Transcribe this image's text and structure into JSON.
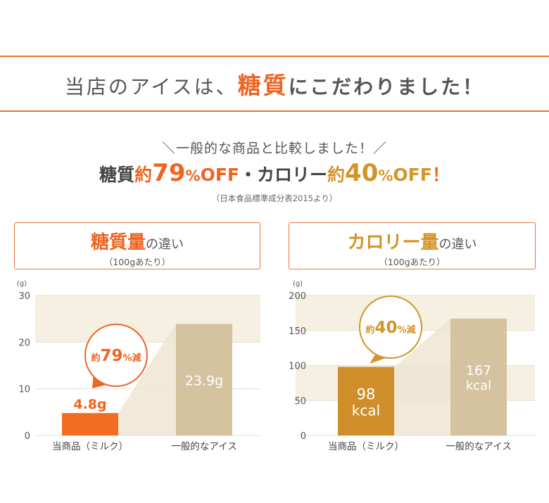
{
  "header": {
    "headline_pre": "当店のアイスは、",
    "headline_accent": "糖質",
    "headline_post": "にこだわりました！"
  },
  "summary": {
    "lead": "＼一般的な商品と比較しました！／",
    "sugar_label": "糖質",
    "sugar_approx": "約",
    "sugar_num": "79",
    "sugar_pct": "%",
    "sugar_off": "OFF",
    "separator": "・",
    "cal_label": "カロリー",
    "cal_approx": "約",
    "cal_num": "40",
    "cal_pct": "%",
    "cal_off": "OFF",
    "excl": "！",
    "source": "（日本食品標準成分表2015より）"
  },
  "boxes": {
    "left": {
      "title": "糖質量",
      "suffix": "の違い",
      "note": "（100gあたり）"
    },
    "right": {
      "title": "カロリー量",
      "suffix": "の違い",
      "note": "（100gあたり）"
    }
  },
  "colors": {
    "accent_orange": "#ee6523",
    "accent_gold": "#d4942a",
    "bar_ours_left": "#f26c21",
    "bar_ours_right": "#d08e2a",
    "bar_general": "#d5c3a0",
    "band": "#f6f0e2"
  },
  "chart_data": [
    {
      "type": "bar",
      "title": "糖質量の違い",
      "ylabel": "(g)",
      "categories": [
        "当商品（ミルク）",
        "一般的なアイス"
      ],
      "values": [
        4.8,
        23.9
      ],
      "value_labels": [
        "4.8g",
        "23.9g"
      ],
      "ylim": [
        0,
        30
      ],
      "yticks": [
        0,
        10,
        20,
        30
      ],
      "callout": {
        "prefix": "約",
        "num": "79",
        "suffix": "%減"
      }
    },
    {
      "type": "bar",
      "title": "カロリー量の違い",
      "ylabel": "(g)",
      "categories": [
        "当商品（ミルク）",
        "一般的なアイス"
      ],
      "values": [
        98,
        167
      ],
      "value_labels": [
        [
          "98",
          "kcal"
        ],
        [
          "167",
          "kcal"
        ]
      ],
      "ylim": [
        0,
        200
      ],
      "yticks": [
        0,
        50,
        100,
        150,
        200
      ],
      "callout": {
        "prefix": "約",
        "num": "40",
        "suffix": "%減"
      }
    }
  ]
}
